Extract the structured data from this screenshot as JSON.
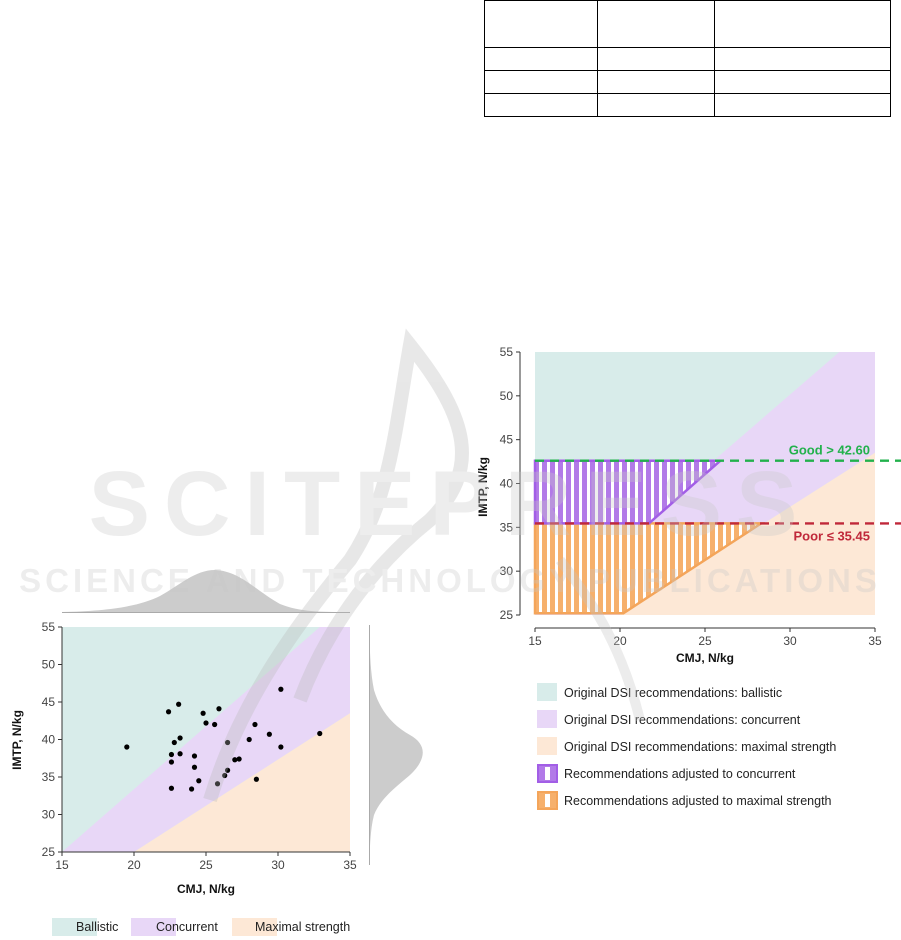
{
  "chart_data": [
    {
      "type": "scatter",
      "xlabel": "CMJ, N/kg",
      "ylabel": "IMTP, N/kg",
      "xlim": [
        15,
        35
      ],
      "ylim": [
        25,
        55
      ],
      "x_ticks": [
        "15",
        "20",
        "25",
        "30",
        "35"
      ],
      "y_ticks": [
        "25",
        "30",
        "35",
        "40",
        "45",
        "50",
        "55"
      ],
      "regions": [
        {
          "name": "Ballistic",
          "color": "#d8ecea"
        },
        {
          "name": "Concurrent",
          "color": "#e8d7f7"
        },
        {
          "name": "Maximal strength",
          "color": "#fde8d6"
        }
      ],
      "legend": [
        "Ballistic",
        "Concurrent",
        "Maximal strength"
      ],
      "legend_placement": "bottom",
      "marginal_densities": true,
      "points": [
        {
          "x": 19.5,
          "y": 39.0
        },
        {
          "x": 22.4,
          "y": 43.7
        },
        {
          "x": 22.6,
          "y": 33.5
        },
        {
          "x": 22.6,
          "y": 37.0
        },
        {
          "x": 22.6,
          "y": 38.0
        },
        {
          "x": 22.8,
          "y": 39.6
        },
        {
          "x": 23.1,
          "y": 44.7
        },
        {
          "x": 23.2,
          "y": 40.2
        },
        {
          "x": 23.2,
          "y": 38.1
        },
        {
          "x": 24.0,
          "y": 33.4
        },
        {
          "x": 24.2,
          "y": 37.8
        },
        {
          "x": 24.2,
          "y": 36.3
        },
        {
          "x": 24.5,
          "y": 34.5
        },
        {
          "x": 24.8,
          "y": 43.5
        },
        {
          "x": 25.0,
          "y": 42.2
        },
        {
          "x": 25.6,
          "y": 42.0
        },
        {
          "x": 25.8,
          "y": 34.1
        },
        {
          "x": 25.9,
          "y": 44.1
        },
        {
          "x": 26.3,
          "y": 35.2
        },
        {
          "x": 26.5,
          "y": 39.6
        },
        {
          "x": 26.5,
          "y": 35.9
        },
        {
          "x": 27.0,
          "y": 37.3
        },
        {
          "x": 27.3,
          "y": 37.4
        },
        {
          "x": 28.0,
          "y": 40.0
        },
        {
          "x": 28.4,
          "y": 42.0
        },
        {
          "x": 28.5,
          "y": 34.7
        },
        {
          "x": 29.4,
          "y": 40.7
        },
        {
          "x": 30.2,
          "y": 46.7
        },
        {
          "x": 30.2,
          "y": 39.0
        },
        {
          "x": 32.9,
          "y": 40.8
        }
      ]
    },
    {
      "type": "area",
      "xlabel": "CMJ, N/kg",
      "ylabel": "IMTP, N/kg",
      "xlim": [
        15,
        35
      ],
      "ylim": [
        25,
        55
      ],
      "x_ticks": [
        "15",
        "20",
        "25",
        "30",
        "35"
      ],
      "y_ticks": [
        "25",
        "30",
        "35",
        "40",
        "45",
        "50",
        "55"
      ],
      "thresholds": [
        {
          "label": "Good > 42.60",
          "y": 42.6,
          "color": "#22b14c"
        },
        {
          "label": "Poor ≤ 35.45",
          "y": 35.45,
          "color": "#c0283a"
        }
      ],
      "legend": [
        {
          "label": "Original DSI recommendations: ballistic",
          "color": "#d8ecea"
        },
        {
          "label": "Original DSI recommendations: concurrent",
          "color": "#e8d7f7"
        },
        {
          "label": "Original DSI recommendations: maximal strength",
          "color": "#fde8d6"
        },
        {
          "label": "Recommendations adjusted to concurrent",
          "color": "#a25ee6"
        },
        {
          "label": "Recommendations adjusted to maximal strength",
          "color": "#f4a55a"
        }
      ],
      "legend_placement": "bottom"
    }
  ],
  "watermark": {
    "title": "SCITEPRESS",
    "subtitle": "SCIENCE AND TECHNOLOGY PUBLICATIONS"
  }
}
